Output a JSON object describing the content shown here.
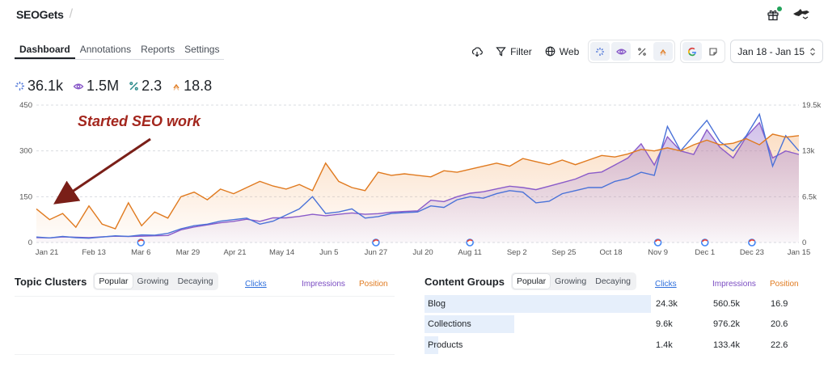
{
  "app": {
    "logo_text": "SEOGets"
  },
  "tabs": [
    {
      "label": "Dashboard",
      "active": true
    },
    {
      "label": "Annotations"
    },
    {
      "label": "Reports"
    },
    {
      "label": "Settings"
    }
  ],
  "toolbar": {
    "filter_label": "Filter",
    "web_label": "Web",
    "date_range": "Jan 18 - Jan 15"
  },
  "metrics": {
    "clicks": "36.1k",
    "impressions": "1.5M",
    "ctr": "2.3",
    "position": "18.8"
  },
  "colors": {
    "clicks": "#4a72d8",
    "impressions": "#8a5bc9",
    "position": "#e07a1f",
    "annotation": "#a3261d"
  },
  "chart_data": {
    "type": "line",
    "annotation": "Started SEO work",
    "x_tick_labels": [
      "Jan 21",
      "Feb 13",
      "Mar 6",
      "Mar 29",
      "Apr 21",
      "May 14",
      "Jun 5",
      "Jun 27",
      "Jul 20",
      "Aug 11",
      "Sep 2",
      "Sep 25",
      "Oct 18",
      "Nov 9",
      "Dec 1",
      "Dec 23",
      "Jan 15"
    ],
    "y_left_ticks": [
      "450",
      "300",
      "150",
      "0"
    ],
    "y_right_ticks": [
      "19.5k",
      "13k",
      "6.5k",
      "0"
    ],
    "ylim_left": [
      0,
      450
    ],
    "ylim_right": [
      0,
      19500
    ],
    "google_update_marker_positions": [
      "Mar 6",
      "Jun 27",
      "Aug 11",
      "Nov 9",
      "Dec 1",
      "Dec 23"
    ],
    "series": [
      {
        "name": "Clicks",
        "axis": "left",
        "values": [
          18,
          15,
          20,
          16,
          14,
          18,
          22,
          20,
          25,
          24,
          30,
          45,
          55,
          60,
          70,
          75,
          80,
          60,
          70,
          90,
          110,
          150,
          95,
          100,
          110,
          80,
          85,
          95,
          98,
          100,
          120,
          115,
          140,
          150,
          145,
          160,
          170,
          165,
          130,
          135,
          160,
          170,
          180,
          180,
          200,
          210,
          230,
          220,
          380,
          300,
          350,
          400,
          330,
          300,
          350,
          420,
          250,
          350,
          300
        ]
      },
      {
        "name": "Impressions",
        "axis": "right",
        "values": [
          700,
          650,
          800,
          750,
          700,
          800,
          900,
          850,
          900,
          950,
          1000,
          1800,
          2200,
          2500,
          2800,
          3000,
          3300,
          3000,
          3500,
          3500,
          3700,
          4000,
          3800,
          4000,
          4200,
          4000,
          4100,
          4300,
          4400,
          4500,
          6000,
          5800,
          6500,
          7000,
          7200,
          7600,
          8000,
          7800,
          7500,
          8000,
          8500,
          9000,
          9800,
          10000,
          11000,
          12000,
          14000,
          11000,
          15000,
          13000,
          12500,
          16000,
          13500,
          12000,
          15000,
          17000,
          12000,
          13000,
          12500
        ]
      },
      {
        "name": "Position",
        "axis": "left",
        "values": [
          110,
          75,
          95,
          50,
          120,
          60,
          45,
          130,
          55,
          100,
          80,
          150,
          165,
          140,
          175,
          160,
          180,
          200,
          185,
          175,
          190,
          170,
          260,
          200,
          180,
          170,
          230,
          220,
          225,
          220,
          215,
          235,
          230,
          240,
          250,
          260,
          250,
          275,
          265,
          255,
          270,
          255,
          270,
          285,
          280,
          290,
          305,
          300,
          310,
          300,
          320,
          335,
          320,
          325,
          340,
          320,
          355,
          345,
          350
        ]
      }
    ]
  },
  "topic_clusters": {
    "title": "Topic Clusters",
    "filters": [
      "Popular",
      "Growing",
      "Decaying"
    ],
    "active_filter": "Popular",
    "columns": [
      "Clicks",
      "Impressions",
      "Position"
    ]
  },
  "content_groups": {
    "title": "Content Groups",
    "filters": [
      "Popular",
      "Growing",
      "Decaying"
    ],
    "active_filter": "Popular",
    "columns": [
      "Clicks",
      "Impressions",
      "Position"
    ],
    "rows": [
      {
        "label": "Blog",
        "clicks": "24.3k",
        "impressions": "560.5k",
        "position": "16.9",
        "share": 1.0
      },
      {
        "label": "Collections",
        "clicks": "9.6k",
        "impressions": "976.2k",
        "position": "20.6",
        "share": 0.395
      },
      {
        "label": "Products",
        "clicks": "1.4k",
        "impressions": "133.4k",
        "position": "22.6",
        "share": 0.06
      }
    ]
  }
}
